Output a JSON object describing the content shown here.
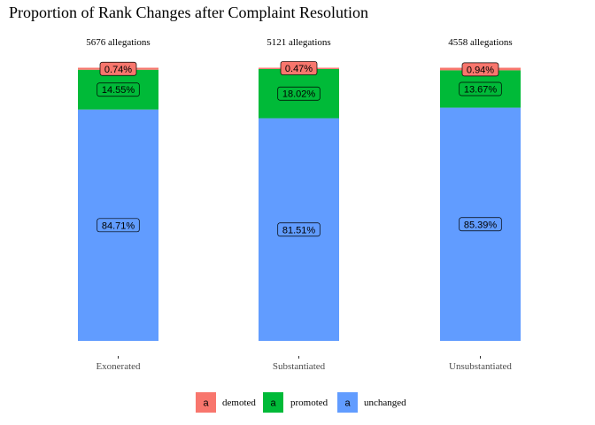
{
  "chart_data": {
    "type": "bar",
    "stacked": true,
    "title": "Proportion of Rank Changes after Complaint Resolution",
    "categories": [
      "Exonerated",
      "Substantiated",
      "Unsubstantiated"
    ],
    "annotations": [
      "5676 allegations",
      "5121 allegations",
      "4558 allegations"
    ],
    "series": [
      {
        "name": "demoted",
        "color": "#F8766D",
        "values": [
          0.74,
          0.47,
          0.94
        ],
        "labels": [
          "0.74%",
          "0.47%",
          "0.94%"
        ]
      },
      {
        "name": "promoted",
        "color": "#00BA38",
        "values": [
          14.55,
          18.02,
          13.67
        ],
        "labels": [
          "14.55%",
          "18.02%",
          "13.67%"
        ]
      },
      {
        "name": "unchanged",
        "color": "#619CFF",
        "values": [
          84.71,
          81.51,
          85.39
        ],
        "labels": [
          "84.71%",
          "81.51%",
          "85.39%"
        ]
      }
    ],
    "ylim": [
      0,
      100
    ],
    "xlabel": "",
    "ylabel": "",
    "grid": false,
    "legend_position": "bottom",
    "legend_key_glyph": "a"
  }
}
